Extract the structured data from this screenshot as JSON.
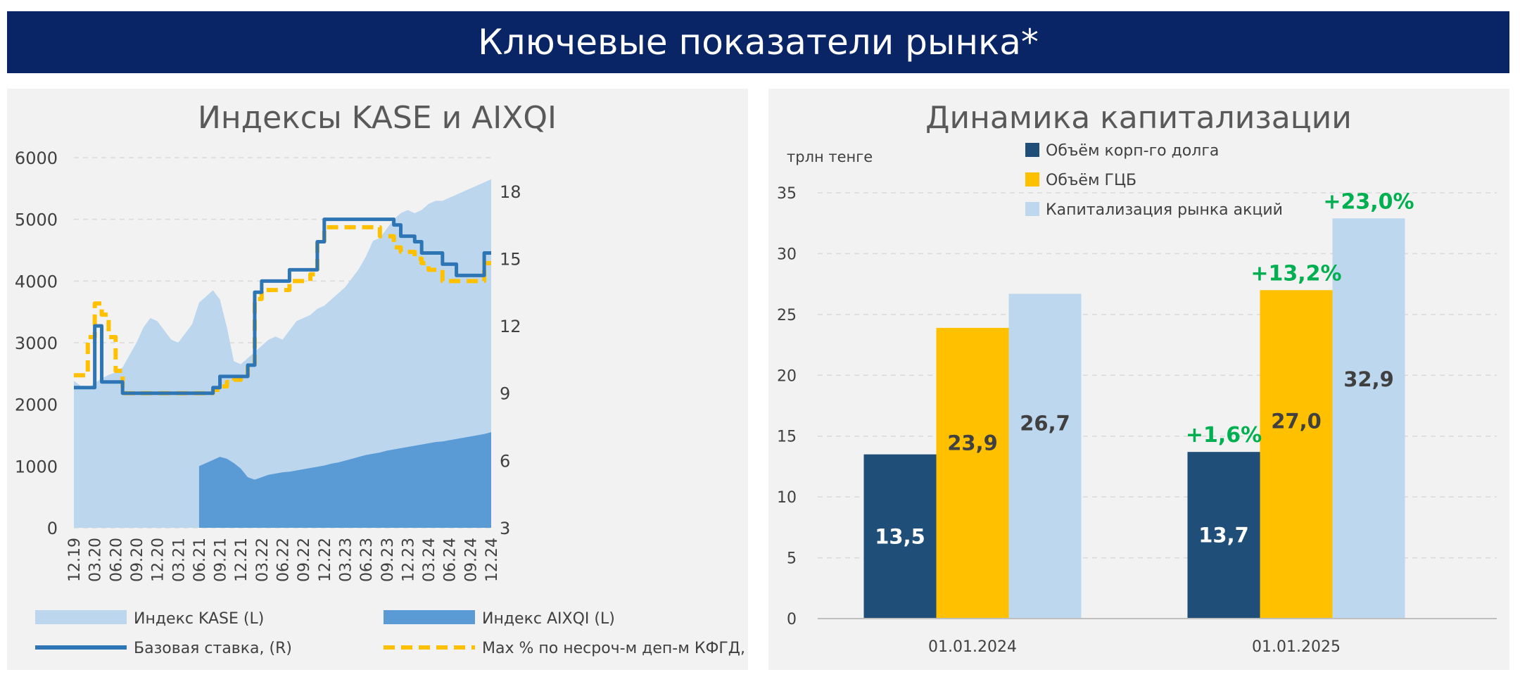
{
  "banner": {
    "title": "Ключевые показатели рынка*"
  },
  "colors": {
    "banner_bg": "#0a2566",
    "kase": "#bcd6ee",
    "aixqi": "#5b9bd5",
    "base_rate": "#2e75b6",
    "max_rate": "#ffc000",
    "corp_debt": "#1f4e79",
    "gov_bonds": "#ffc000",
    "equity_cap": "#bdd7ee",
    "growth": "#00b050"
  },
  "chart_data": [
    {
      "type": "area",
      "title": "Индексы KASE и AIXQI",
      "ylim_left": [
        0,
        6000
      ],
      "ylim_right": [
        3,
        19.5
      ],
      "y_ticks_left": [
        "0",
        "1000",
        "2000",
        "3000",
        "4000",
        "5000",
        "6000"
      ],
      "y_ticks_right": [
        "3",
        "6",
        "9",
        "12",
        "15",
        "18"
      ],
      "x_ticks": [
        "12.19",
        "03.20",
        "06.20",
        "09.20",
        "12.20",
        "03.21",
        "06.21",
        "09.21",
        "12.21",
        "03.22",
        "06.22",
        "09.22",
        "12.22",
        "03.23",
        "06.23",
        "09.23",
        "12.23",
        "03.24",
        "06.24",
        "09.24",
        "12.24"
      ],
      "gridlines": true,
      "legend_position": "bottom",
      "x_months": [
        0,
        1,
        2,
        3,
        4,
        5,
        6,
        7,
        8,
        9,
        10,
        11,
        12,
        13,
        14,
        15,
        16,
        17,
        18,
        19,
        20,
        21,
        22,
        23,
        24,
        25,
        26,
        27,
        28,
        29,
        30,
        31,
        32,
        33,
        34,
        35,
        36,
        37,
        38,
        39,
        40,
        41,
        42,
        43,
        44,
        45,
        46,
        47,
        48,
        49,
        50,
        51,
        52,
        53,
        54,
        55,
        56,
        57,
        58,
        59,
        60
      ],
      "series": [
        {
          "name": "Индекс KASE (L)",
          "kind": "area",
          "axis": "left",
          "x": [
            0,
            1,
            2,
            3,
            4,
            5,
            6,
            7,
            8,
            9,
            10,
            11,
            12,
            13,
            14,
            15,
            16,
            17,
            18,
            19,
            20,
            21,
            22,
            23,
            24,
            25,
            26,
            27,
            28,
            29,
            30,
            31,
            32,
            33,
            34,
            35,
            36,
            37,
            38,
            39,
            40,
            41,
            42,
            43,
            44,
            45,
            46,
            47,
            48,
            49,
            50,
            51,
            52,
            53,
            54,
            55,
            56,
            57,
            58,
            59,
            60
          ],
          "values": [
            2380,
            2300,
            2250,
            2350,
            2420,
            2480,
            2520,
            2600,
            2800,
            3000,
            3250,
            3400,
            3350,
            3200,
            3050,
            3000,
            3150,
            3300,
            3650,
            3750,
            3850,
            3700,
            3250,
            2700,
            2650,
            2750,
            2850,
            2950,
            3050,
            3100,
            3050,
            3200,
            3350,
            3400,
            3450,
            3550,
            3600,
            3700,
            3800,
            3900,
            4050,
            4200,
            4400,
            4650,
            4700,
            4850,
            5000,
            5100,
            5150,
            5100,
            5150,
            5250,
            5300,
            5300,
            5350,
            5400,
            5450,
            5500,
            5550,
            5600,
            5650
          ]
        },
        {
          "name": "Индекс AIXQI (L)",
          "kind": "area",
          "axis": "left",
          "x": [
            18,
            19,
            20,
            21,
            22,
            23,
            24,
            25,
            26,
            27,
            28,
            29,
            30,
            31,
            32,
            33,
            34,
            35,
            36,
            37,
            38,
            39,
            40,
            41,
            42,
            43,
            44,
            45,
            46,
            47,
            48,
            49,
            50,
            51,
            52,
            53,
            54,
            55,
            56,
            57,
            58,
            59,
            60
          ],
          "values": [
            1000,
            1050,
            1100,
            1150,
            1120,
            1050,
            960,
            820,
            780,
            820,
            860,
            880,
            900,
            910,
            930,
            950,
            970,
            990,
            1010,
            1040,
            1060,
            1090,
            1120,
            1150,
            1180,
            1200,
            1220,
            1250,
            1270,
            1290,
            1310,
            1330,
            1350,
            1370,
            1390,
            1400,
            1420,
            1440,
            1460,
            1480,
            1500,
            1520,
            1550
          ]
        },
        {
          "name": "Базовая ставка, (R)",
          "kind": "step",
          "axis": "right",
          "x": [
            0,
            3,
            3,
            4,
            4,
            7,
            7,
            20,
            20,
            21,
            21,
            25,
            25,
            26,
            26,
            27,
            27,
            31,
            31,
            35,
            35,
            36,
            36,
            46,
            46,
            47,
            47,
            49,
            49,
            50,
            50,
            53,
            53,
            55,
            55,
            59,
            59,
            60
          ],
          "values": [
            9.25,
            9.25,
            12,
            12,
            9.5,
            9.5,
            9,
            9,
            9.25,
            9.25,
            9.75,
            9.75,
            10.25,
            10.25,
            13.5,
            13.5,
            14,
            14,
            14.5,
            14.5,
            15.75,
            15.75,
            16.75,
            16.75,
            16.5,
            16.5,
            16,
            16,
            15.75,
            15.75,
            15.25,
            15.25,
            14.75,
            14.75,
            14.25,
            14.25,
            15.25,
            15.25
          ]
        },
        {
          "name": "Max % по несроч-м деп-м КФГД, (R)",
          "kind": "step",
          "axis": "right",
          "dashed": true,
          "x": [
            0,
            2,
            2,
            3,
            3,
            4,
            4,
            5,
            5,
            6,
            6,
            7,
            7,
            20,
            20,
            21,
            21,
            22,
            22,
            23,
            23,
            24,
            24,
            25,
            25,
            26,
            26,
            27,
            27,
            31,
            31,
            34,
            34,
            35,
            35,
            36,
            36,
            44,
            44,
            46,
            46,
            47,
            47,
            49,
            49,
            50,
            50,
            51,
            51,
            53,
            53,
            59,
            59,
            60
          ],
          "values": [
            9.8,
            9.8,
            11.5,
            11.5,
            13,
            13,
            12.5,
            12.5,
            11.5,
            11.5,
            10,
            10,
            9,
            9,
            9.15,
            9.15,
            9.3,
            9.3,
            9.5,
            9.5,
            9.6,
            9.6,
            9.8,
            9.8,
            10.3,
            10.3,
            13.2,
            13.2,
            13.6,
            13.6,
            14,
            14,
            14.3,
            14.3,
            15.7,
            15.7,
            16.4,
            16.4,
            16,
            16,
            15.5,
            15.5,
            15.3,
            15.3,
            15,
            15,
            14.8,
            14.8,
            14.5,
            14.5,
            14,
            14,
            14.8,
            14.8
          ]
        }
      ]
    },
    {
      "type": "bar",
      "title": "Динамика капитализации",
      "ylabel": "трлн тенге",
      "ylim": [
        0,
        35
      ],
      "y_ticks": [
        "0",
        "5",
        "10",
        "15",
        "20",
        "25",
        "30",
        "35"
      ],
      "categories": [
        "01.01.2024",
        "01.01.2025"
      ],
      "legend_position": "top",
      "series": [
        {
          "name": "Объём корп-го долга",
          "values": [
            13.5,
            13.7
          ],
          "labels": [
            "13,5",
            "13,7"
          ]
        },
        {
          "name": "Объём ГЦБ",
          "values": [
            23.9,
            27.0
          ],
          "labels": [
            "23,9",
            "27,0"
          ]
        },
        {
          "name": "Капитализация рынка акций",
          "values": [
            26.7,
            32.9
          ],
          "labels": [
            "26,7",
            "32,9"
          ]
        }
      ],
      "growth_labels": [
        "+1,6%",
        "+13,2%",
        "+23,0%"
      ]
    }
  ]
}
